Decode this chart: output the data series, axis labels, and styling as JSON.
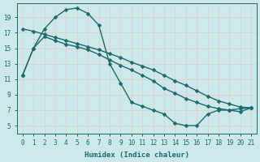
{
  "xlabel": "Humidex (Indice chaleur)",
  "bg_color": "#cce8e8",
  "grid_color": "#b0d8d8",
  "line_color": "#1a6b6b",
  "xlim": [
    -0.5,
    21.5
  ],
  "ylim": [
    4.0,
    20.8
  ],
  "xticks": [
    0,
    1,
    2,
    3,
    4,
    5,
    6,
    7,
    8,
    9,
    10,
    11,
    12,
    13,
    14,
    15,
    16,
    17,
    18,
    19,
    20,
    21
  ],
  "yticks": [
    5,
    7,
    9,
    11,
    13,
    15,
    17,
    19
  ],
  "curve1_x": [
    0,
    1,
    2,
    3,
    4,
    5,
    6,
    7,
    8,
    9,
    10,
    11,
    12,
    13,
    14,
    15,
    16,
    17,
    18,
    19,
    20,
    21
  ],
  "curve1_y": [
    11.5,
    15.0,
    17.5,
    19.0,
    20.0,
    20.2,
    19.5,
    18.0,
    13.0,
    10.5,
    8.0,
    7.5,
    7.0,
    6.5,
    5.3,
    5.0,
    5.0,
    6.5,
    7.0,
    7.0,
    7.2,
    7.3
  ],
  "curve2_x": [
    0,
    1,
    2,
    3,
    4,
    5,
    6,
    7,
    8,
    9,
    10,
    11,
    12,
    13,
    14,
    15,
    16,
    17,
    18,
    19,
    20,
    21
  ],
  "curve2_y": [
    17.5,
    17.2,
    16.8,
    16.4,
    16.0,
    15.6,
    15.2,
    14.8,
    14.3,
    13.8,
    13.2,
    12.7,
    12.2,
    11.5,
    10.8,
    10.2,
    9.5,
    8.8,
    8.2,
    7.8,
    7.4,
    7.3
  ],
  "curve3_x": [
    0,
    1,
    2,
    3,
    4,
    5,
    6,
    7,
    8,
    9,
    10,
    11,
    12,
    13,
    14,
    15,
    16,
    17,
    18,
    19,
    20,
    21
  ],
  "curve3_y": [
    11.5,
    15.0,
    16.5,
    16.0,
    15.5,
    15.2,
    14.8,
    14.2,
    13.5,
    12.8,
    12.2,
    11.5,
    10.8,
    9.8,
    9.2,
    8.5,
    8.0,
    7.5,
    7.2,
    7.0,
    6.8,
    7.3
  ]
}
